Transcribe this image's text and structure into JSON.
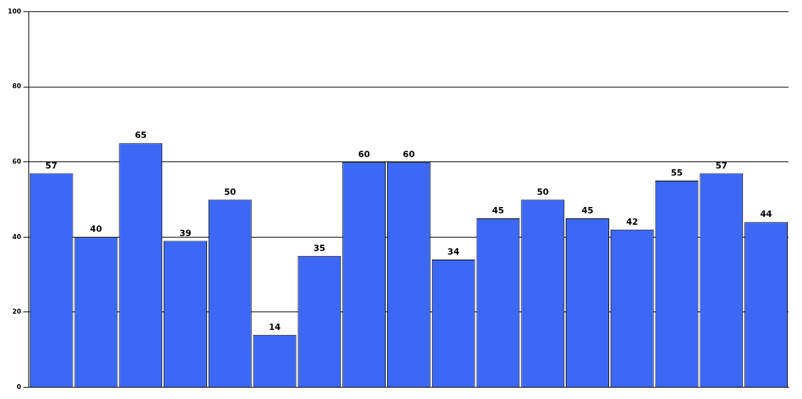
{
  "chart_data": {
    "type": "bar",
    "categories": [
      null,
      null,
      null,
      null,
      null,
      null,
      null,
      null,
      null,
      null,
      null,
      null,
      null,
      null,
      null,
      null,
      null
    ],
    "values": [
      57,
      40,
      65,
      39,
      50,
      14,
      35,
      60,
      60,
      34,
      45,
      50,
      45,
      42,
      55,
      57,
      44
    ],
    "color": "#3d67f5",
    "ylim": [
      0,
      100
    ],
    "yticks": [
      0,
      20,
      40,
      60,
      80,
      100
    ],
    "grid": "y",
    "data_labels": true
  }
}
